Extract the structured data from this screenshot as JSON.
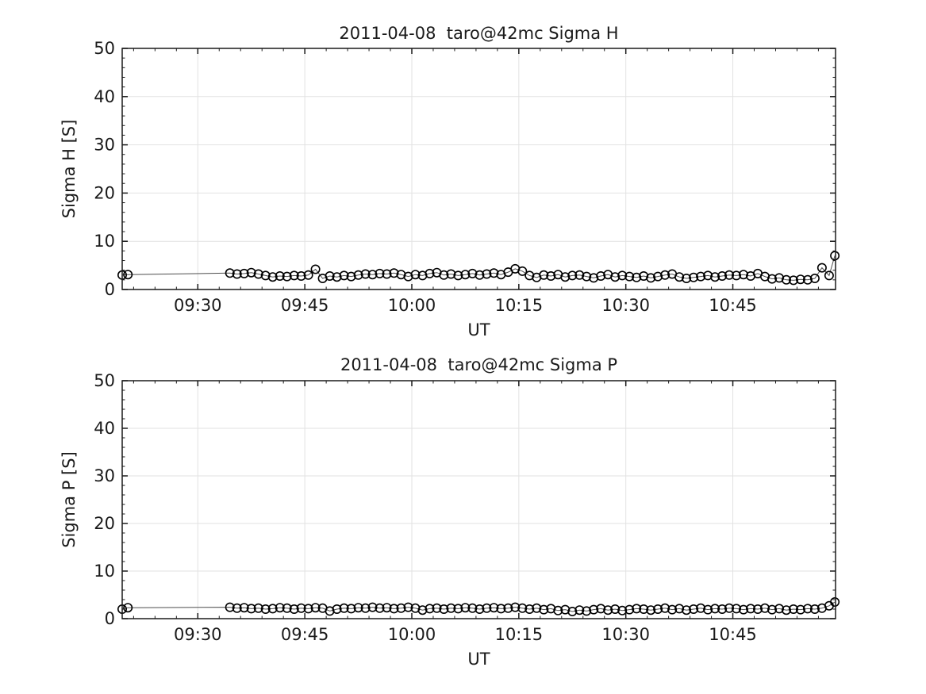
{
  "style": {
    "background": "#ffffff",
    "axis_color": "#1a1a1a",
    "text_color": "#1a1a1a",
    "grid_color": "#e2e2e2",
    "line_color": "#4d4d4d",
    "marker_color": "#000000"
  },
  "chart_data": [
    {
      "type": "line",
      "title": "2011-04-08  taro@42mc Sigma H",
      "xlabel": "UT",
      "ylabel": "Sigma H [S]",
      "ylim": [
        0,
        50
      ],
      "xlim_minutes": [
        559.4,
        659.4
      ],
      "grid": true,
      "legend": "none",
      "marker": "open-circle",
      "yticks": [
        {
          "value": 0,
          "label": "0"
        },
        {
          "value": 10,
          "label": "10"
        },
        {
          "value": 20,
          "label": "20"
        },
        {
          "value": 30,
          "label": "30"
        },
        {
          "value": 40,
          "label": "40"
        },
        {
          "value": 50,
          "label": "50"
        }
      ],
      "y_minor_step": 2,
      "xticks": [
        {
          "value": 570,
          "label": "09:30"
        },
        {
          "value": 585,
          "label": "09:45"
        },
        {
          "value": 600,
          "label": "10:00"
        },
        {
          "value": 615,
          "label": "10:15"
        },
        {
          "value": 630,
          "label": "10:30"
        },
        {
          "value": 645,
          "label": "10:45"
        }
      ],
      "x_minor_step": 3,
      "x_minutes": [
        559.4,
        560.2,
        574.5,
        575.5,
        576.5,
        577.5,
        578.5,
        579.5,
        580.5,
        581.5,
        582.5,
        583.5,
        584.5,
        585.5,
        586.5,
        587.5,
        588.5,
        589.5,
        590.5,
        591.5,
        592.5,
        593.5,
        594.5,
        595.5,
        596.5,
        597.5,
        598.5,
        599.5,
        600.5,
        601.5,
        602.5,
        603.5,
        604.5,
        605.5,
        606.5,
        607.5,
        608.5,
        609.5,
        610.5,
        611.5,
        612.5,
        613.5,
        614.5,
        615.5,
        616.5,
        617.5,
        618.5,
        619.5,
        620.5,
        621.5,
        622.5,
        623.5,
        624.5,
        625.5,
        626.5,
        627.5,
        628.5,
        629.5,
        630.5,
        631.5,
        632.5,
        633.5,
        634.5,
        635.5,
        636.5,
        637.5,
        638.5,
        639.5,
        640.5,
        641.5,
        642.5,
        643.5,
        644.5,
        645.5,
        646.5,
        647.5,
        648.5,
        649.5,
        650.5,
        651.5,
        652.5,
        653.5,
        654.5,
        655.5,
        656.5,
        657.5,
        658.5,
        659.3
      ],
      "y_values": [
        3.0,
        3.1,
        3.4,
        3.2,
        3.3,
        3.5,
        3.2,
        2.9,
        2.6,
        2.8,
        2.7,
        2.9,
        2.8,
        3.0,
        4.2,
        2.3,
        2.8,
        2.6,
        2.9,
        2.7,
        3.0,
        3.2,
        3.1,
        3.3,
        3.2,
        3.4,
        3.1,
        2.7,
        3.1,
        2.9,
        3.3,
        3.5,
        3.0,
        3.2,
        2.9,
        3.1,
        3.3,
        3.0,
        3.2,
        3.4,
        3.1,
        3.6,
        4.3,
        3.8,
        2.9,
        2.5,
        3.0,
        2.8,
        3.1,
        2.6,
        2.9,
        3.0,
        2.7,
        2.4,
        2.8,
        3.1,
        2.6,
        2.9,
        2.7,
        2.5,
        2.8,
        2.4,
        2.7,
        3.0,
        3.2,
        2.6,
        2.3,
        2.5,
        2.7,
        2.9,
        2.6,
        2.8,
        3.0,
        2.9,
        3.1,
        2.8,
        3.3,
        2.7,
        2.2,
        2.4,
        2.0,
        1.9,
        2.1,
        2.0,
        2.3,
        4.5,
        2.9,
        7.0
      ]
    },
    {
      "type": "line",
      "title": "2011-04-08  taro@42mc Sigma P",
      "xlabel": "UT",
      "ylabel": "Sigma P [S]",
      "ylim": [
        0,
        50
      ],
      "xlim_minutes": [
        559.4,
        659.4
      ],
      "grid": true,
      "legend": "none",
      "marker": "open-circle",
      "yticks": [
        {
          "value": 0,
          "label": "0"
        },
        {
          "value": 10,
          "label": "10"
        },
        {
          "value": 20,
          "label": "20"
        },
        {
          "value": 30,
          "label": "30"
        },
        {
          "value": 40,
          "label": "40"
        },
        {
          "value": 50,
          "label": "50"
        }
      ],
      "y_minor_step": 2,
      "xticks": [
        {
          "value": 570,
          "label": "09:30"
        },
        {
          "value": 585,
          "label": "09:45"
        },
        {
          "value": 600,
          "label": "10:00"
        },
        {
          "value": 615,
          "label": "10:15"
        },
        {
          "value": 630,
          "label": "10:30"
        },
        {
          "value": 645,
          "label": "10:45"
        }
      ],
      "x_minor_step": 3,
      "x_minutes": [
        559.4,
        560.2,
        574.5,
        575.5,
        576.5,
        577.5,
        578.5,
        579.5,
        580.5,
        581.5,
        582.5,
        583.5,
        584.5,
        585.5,
        586.5,
        587.5,
        588.5,
        589.5,
        590.5,
        591.5,
        592.5,
        593.5,
        594.5,
        595.5,
        596.5,
        597.5,
        598.5,
        599.5,
        600.5,
        601.5,
        602.5,
        603.5,
        604.5,
        605.5,
        606.5,
        607.5,
        608.5,
        609.5,
        610.5,
        611.5,
        612.5,
        613.5,
        614.5,
        615.5,
        616.5,
        617.5,
        618.5,
        619.5,
        620.5,
        621.5,
        622.5,
        623.5,
        624.5,
        625.5,
        626.5,
        627.5,
        628.5,
        629.5,
        630.5,
        631.5,
        632.5,
        633.5,
        634.5,
        635.5,
        636.5,
        637.5,
        638.5,
        639.5,
        640.5,
        641.5,
        642.5,
        643.5,
        644.5,
        645.5,
        646.5,
        647.5,
        648.5,
        649.5,
        650.5,
        651.5,
        652.5,
        653.5,
        654.5,
        655.5,
        656.5,
        657.5,
        658.5,
        659.3
      ],
      "y_values": [
        2.0,
        2.3,
        2.4,
        2.2,
        2.3,
        2.1,
        2.2,
        2.0,
        2.1,
        2.3,
        2.2,
        2.0,
        2.2,
        2.1,
        2.3,
        2.2,
        1.6,
        2.0,
        2.2,
        2.1,
        2.3,
        2.2,
        2.4,
        2.2,
        2.3,
        2.1,
        2.2,
        2.4,
        2.2,
        1.8,
        2.1,
        2.2,
        2.0,
        2.2,
        2.1,
        2.3,
        2.2,
        2.0,
        2.2,
        2.3,
        2.1,
        2.2,
        2.4,
        2.2,
        2.0,
        2.2,
        1.9,
        2.1,
        1.7,
        1.9,
        1.5,
        1.8,
        1.6,
        1.9,
        2.1,
        1.8,
        2.0,
        1.7,
        1.9,
        2.1,
        2.0,
        1.8,
        2.0,
        2.2,
        1.9,
        2.1,
        1.8,
        2.0,
        2.2,
        1.9,
        2.1,
        2.0,
        2.2,
        2.1,
        1.9,
        2.1,
        2.0,
        2.2,
        1.9,
        2.1,
        1.8,
        2.0,
        1.9,
        2.1,
        2.0,
        2.2,
        2.7,
        3.5
      ]
    }
  ]
}
